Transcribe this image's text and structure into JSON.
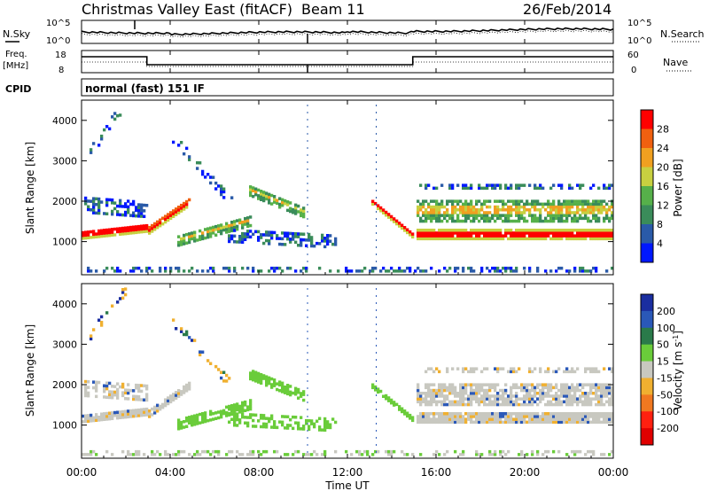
{
  "header": {
    "station": "Christmas Valley East (fitACF)",
    "beam": "Beam 11",
    "date": "26/Feb/2014"
  },
  "mode_label": "normal (fast) 151 IF",
  "cpid_label": "CPID",
  "noise_panel": {
    "left_label": "N.Sky",
    "right_label": "N.Search",
    "left_ticks": [
      "10^5",
      "10^0"
    ],
    "right_ticks": [
      "10^5",
      "10^0"
    ]
  },
  "freq_panel": {
    "left_label_1": "Freq.",
    "left_label_2": "[MHz]",
    "right_label": "Nave",
    "left_ticks": [
      "18",
      "8"
    ],
    "right_ticks": [
      "60",
      "0"
    ]
  },
  "chart_data": [
    {
      "type": "heatmap",
      "name": "power",
      "ylabel": "Slant Range [km]",
      "ylim": [
        180,
        4500
      ],
      "yticks": [
        1000,
        2000,
        3000,
        4000
      ],
      "xlim": [
        0,
        24
      ],
      "colorbar": {
        "label": "Power [dB]",
        "ticks": [
          "4",
          "8",
          "12",
          "16",
          "20",
          "24",
          "28"
        ],
        "colors": [
          "#0018ff",
          "#2a5aa8",
          "#3a8c5a",
          "#56b04a",
          "#c8d040",
          "#f0a020",
          "#f06010",
          "#ff0000"
        ]
      }
    },
    {
      "type": "heatmap",
      "name": "velocity",
      "ylabel": "Slant Range [km]",
      "ylim": [
        180,
        4500
      ],
      "yticks": [
        1000,
        2000,
        3000,
        4000
      ],
      "xlim": [
        0,
        24
      ],
      "colorbar": {
        "label": "Velocity [m s-1]",
        "ticks": [
          "200",
          "100",
          "50",
          "15",
          "-15",
          "-50",
          "-100",
          "-200"
        ],
        "colors": [
          "#1a2ea0",
          "#2a58b8",
          "#2a7a4a",
          "#6acc3a",
          "#c8c8c0",
          "#f0b030",
          "#f07820",
          "#ff2010",
          "#e00000"
        ]
      }
    }
  ],
  "x_axis": {
    "label": "Time UT",
    "ticks": [
      "00:00",
      "04:00",
      "08:00",
      "12:00",
      "16:00",
      "20:00",
      "00:00"
    ]
  }
}
